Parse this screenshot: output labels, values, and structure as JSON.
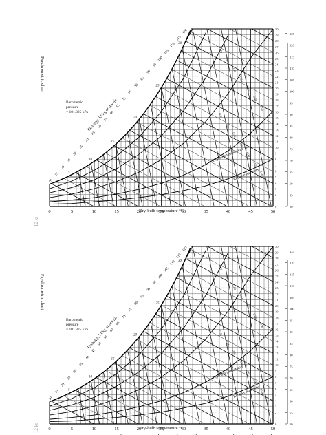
{
  "chart_data": [
    {
      "type": "line",
      "title": "Psychrometric chart",
      "pressure_note": [
        "Barometric",
        "pressure",
        "= 101.325 kPa"
      ],
      "xlabel": "Dry-bulb temperature °C",
      "enthalpy_scale_label": "Enthalpy, kJ/kg of dry air",
      "diagonal_enthalpy_label": "Enthalpy, kJ/kg of dry air",
      "in_chart_labels": [
        "Dry-bulb temperature °C",
        "Relative humidity"
      ],
      "xlim": [
        0,
        50
      ],
      "ylim": [
        0,
        30
      ],
      "x_ticks": [
        "0",
        "5",
        "10",
        "15",
        "20",
        "25",
        "30",
        "35",
        "40",
        "45",
        "50"
      ],
      "right_axis_ticks": [
        "0",
        "1",
        "2",
        "3",
        "4",
        "5",
        "6",
        "7",
        "8",
        "9",
        "10",
        "11",
        "12",
        "13",
        "14",
        "15",
        "16",
        "17",
        "18",
        "19",
        "20",
        "21",
        "22",
        "23",
        "24",
        "25",
        "26",
        "27",
        "28",
        "29",
        "30"
      ],
      "enthalpy_bottom_ticks": [
        "10",
        "15",
        "20",
        "25",
        "30",
        "35",
        "40",
        "45",
        "50"
      ],
      "enthalpy_diagonal_ticks": [
        "10",
        "15",
        "20",
        "25",
        "30",
        "35",
        "40",
        "45",
        "50",
        "55",
        "60",
        "65",
        "70",
        "75",
        "80",
        "85",
        "90",
        "95",
        "100",
        "105",
        "110",
        "115",
        "120"
      ],
      "wet_bulb_ticks": [
        "5",
        "10",
        "15",
        "20",
        "25",
        "30"
      ],
      "specific_volume_ticks": [
        "0.78",
        "0.80",
        "0.82",
        "0.84",
        "0.86",
        "0.88",
        "0.90",
        "0.92",
        "0.94",
        "0.96",
        "0.98",
        "1.00",
        "1.02",
        "1.04"
      ],
      "right_scale_ticks": [
        "50",
        "55",
        "60",
        "65",
        "70",
        "75",
        "80",
        "85",
        "90",
        "95",
        "100",
        "105",
        "110",
        "115",
        "120",
        "125"
      ],
      "grid": true,
      "series": [
        {
          "name": "100%",
          "x": [
            0,
            5,
            10,
            15,
            20,
            25,
            30,
            32
          ],
          "y": [
            3.8,
            5.4,
            7.6,
            10.7,
            14.7,
            20.0,
            27.3,
            30.0
          ]
        },
        {
          "name": "80%",
          "x": [
            0,
            5,
            10,
            15,
            20,
            25,
            30,
            35
          ],
          "y": [
            3.0,
            4.3,
            6.1,
            8.5,
            11.7,
            16.0,
            21.7,
            29.4
          ]
        },
        {
          "name": "60%",
          "x": [
            0,
            5,
            10,
            15,
            20,
            25,
            30,
            35,
            40
          ],
          "y": [
            2.3,
            3.2,
            4.5,
            6.4,
            8.8,
            11.9,
            16.2,
            21.8,
            29.0
          ]
        },
        {
          "name": "40%",
          "x": [
            0,
            5,
            10,
            15,
            20,
            25,
            30,
            35,
            40,
            45,
            50
          ],
          "y": [
            1.5,
            2.1,
            3.0,
            4.2,
            5.8,
            7.9,
            10.7,
            14.4,
            19.1,
            25.1,
            30.0
          ]
        },
        {
          "name": "20%",
          "x": [
            0,
            5,
            10,
            15,
            20,
            25,
            30,
            35,
            40,
            45,
            50
          ],
          "y": [
            0.8,
            1.1,
            1.5,
            2.1,
            2.9,
            3.9,
            5.3,
            7.1,
            9.4,
            12.4,
            16.1
          ]
        },
        {
          "name": "10%",
          "x": [
            0,
            5,
            10,
            15,
            20,
            25,
            30,
            35,
            40,
            45,
            50
          ],
          "y": [
            0.4,
            0.5,
            0.8,
            1.1,
            1.5,
            2.0,
            2.7,
            3.5,
            4.7,
            6.2,
            8.0
          ]
        }
      ]
    },
    {
      "type": "line",
      "title": "Psychrometric chart",
      "pressure_note": [
        "Barometric",
        "pressure",
        "= 101.325 kPa"
      ],
      "xlabel": "Dry-bulb temperature °C",
      "enthalpy_scale_label": "Enthalpy, kJ/kg of dry air",
      "diagonal_enthalpy_label": "Enthalpy, kJ/kg of dry air",
      "in_chart_labels": [
        "Dry-bulb temperature °C",
        "Relative humidity"
      ],
      "xlim": [
        0,
        50
      ],
      "ylim": [
        0,
        30
      ],
      "x_ticks": [
        "0",
        "5",
        "10",
        "15",
        "20",
        "25",
        "30",
        "35",
        "40",
        "45",
        "50"
      ],
      "right_axis_ticks": [
        "0",
        "1",
        "2",
        "3",
        "4",
        "5",
        "6",
        "7",
        "8",
        "9",
        "10",
        "11",
        "12",
        "13",
        "14",
        "15",
        "16",
        "17",
        "18",
        "19",
        "20",
        "21",
        "22",
        "23",
        "24",
        "25",
        "26",
        "27",
        "28",
        "29",
        "30"
      ],
      "enthalpy_bottom_ticks": [
        "10",
        "15",
        "20",
        "25",
        "30",
        "35",
        "40",
        "45",
        "50"
      ],
      "enthalpy_diagonal_ticks": [
        "10",
        "15",
        "20",
        "25",
        "30",
        "35",
        "40",
        "45",
        "50",
        "55",
        "60",
        "65",
        "70",
        "75",
        "80",
        "85",
        "90",
        "95",
        "100",
        "105",
        "110",
        "115",
        "120"
      ],
      "wet_bulb_ticks": [
        "5",
        "10",
        "15",
        "20",
        "25",
        "30"
      ],
      "specific_volume_ticks": [
        "0.78",
        "0.80",
        "0.82",
        "0.84",
        "0.86",
        "0.88",
        "0.90",
        "0.92",
        "0.94",
        "0.96",
        "0.98",
        "1.00",
        "1.02",
        "1.04"
      ],
      "right_scale_ticks": [
        "50",
        "55",
        "60",
        "65",
        "70",
        "75",
        "80",
        "85",
        "90",
        "95",
        "100",
        "105",
        "110",
        "115",
        "120",
        "125"
      ],
      "grid": true,
      "series": [
        {
          "name": "100%",
          "x": [
            0,
            5,
            10,
            15,
            20,
            25,
            30,
            32
          ],
          "y": [
            3.8,
            5.4,
            7.6,
            10.7,
            14.7,
            20.0,
            27.3,
            30.0
          ]
        },
        {
          "name": "80%",
          "x": [
            0,
            5,
            10,
            15,
            20,
            25,
            30,
            35
          ],
          "y": [
            3.0,
            4.3,
            6.1,
            8.5,
            11.7,
            16.0,
            21.7,
            29.4
          ]
        },
        {
          "name": "60%",
          "x": [
            0,
            5,
            10,
            15,
            20,
            25,
            30,
            35,
            40
          ],
          "y": [
            2.3,
            3.2,
            4.5,
            6.4,
            8.8,
            11.9,
            16.2,
            21.8,
            29.0
          ]
        },
        {
          "name": "40%",
          "x": [
            0,
            5,
            10,
            15,
            20,
            25,
            30,
            35,
            40,
            45,
            50
          ],
          "y": [
            1.5,
            2.1,
            3.0,
            4.2,
            5.8,
            7.9,
            10.7,
            14.4,
            19.1,
            25.1,
            30.0
          ]
        },
        {
          "name": "20%",
          "x": [
            0,
            5,
            10,
            15,
            20,
            25,
            30,
            35,
            40,
            45,
            50
          ],
          "y": [
            0.8,
            1.1,
            1.5,
            2.1,
            2.9,
            3.9,
            5.3,
            7.1,
            9.4,
            12.4,
            16.1
          ]
        },
        {
          "name": "10%",
          "x": [
            0,
            5,
            10,
            15,
            20,
            25,
            30,
            35,
            40,
            45,
            50
          ],
          "y": [
            0.4,
            0.5,
            0.8,
            1.1,
            1.5,
            2.0,
            2.7,
            3.5,
            4.7,
            6.2,
            8.0
          ]
        }
      ]
    }
  ],
  "scan_marks": [
    "12 kt",
    "12 kt"
  ]
}
